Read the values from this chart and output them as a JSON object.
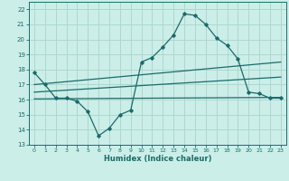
{
  "xlabel": "Humidex (Indice chaleur)",
  "bg_color": "#cceee8",
  "line_color": "#1a6b6b",
  "grid_color": "#aad8d0",
  "xlim": [
    -0.5,
    23.5
  ],
  "ylim": [
    13,
    22.5
  ],
  "yticks": [
    13,
    14,
    15,
    16,
    17,
    18,
    19,
    20,
    21,
    22
  ],
  "xticks": [
    0,
    1,
    2,
    3,
    4,
    5,
    6,
    7,
    8,
    9,
    10,
    11,
    12,
    13,
    14,
    15,
    16,
    17,
    18,
    19,
    20,
    21,
    22,
    23
  ],
  "curve1_x": [
    0,
    1,
    2,
    3,
    4,
    5,
    6,
    7,
    8,
    9,
    10,
    11,
    12,
    13,
    14,
    15,
    16,
    17,
    18,
    19,
    20,
    21,
    22,
    23
  ],
  "curve1_y": [
    17.8,
    17.0,
    16.1,
    16.1,
    15.9,
    15.2,
    13.6,
    14.1,
    15.0,
    15.3,
    18.5,
    18.8,
    19.5,
    20.3,
    21.7,
    21.6,
    21.0,
    20.1,
    19.6,
    18.7,
    16.5,
    16.4,
    16.1,
    16.1
  ],
  "line2_x": [
    0,
    23
  ],
  "line2_y": [
    17.0,
    18.5
  ],
  "line3_x": [
    0,
    23
  ],
  "line3_y": [
    16.5,
    17.5
  ],
  "line4_x": [
    0,
    23
  ],
  "line4_y": [
    16.05,
    16.15
  ]
}
